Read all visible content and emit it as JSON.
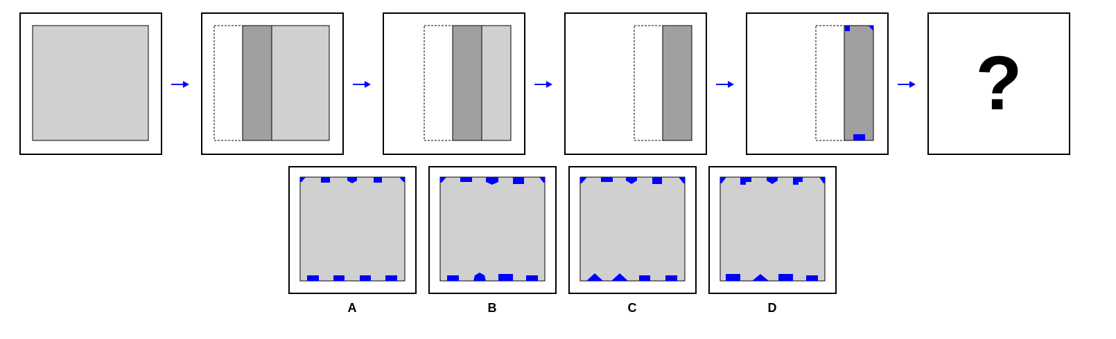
{
  "question_symbol": "?",
  "colors": {
    "light_gray": "#d0d0d0",
    "dark_gray": "#a0a0a0",
    "marker_blue": "#0000ff"
  },
  "sequence": [
    {
      "step": 1,
      "description_key": "full-sheet"
    },
    {
      "step": 2,
      "description_key": "folded-strip"
    },
    {
      "step": 3,
      "description_key": "second-fold"
    },
    {
      "step": 4,
      "description_key": "third-fold"
    },
    {
      "step": 5,
      "description_key": "punched"
    },
    {
      "step": 6,
      "description_key": "question"
    }
  ],
  "options": [
    {
      "label": "A"
    },
    {
      "label": "B"
    },
    {
      "label": "C"
    },
    {
      "label": "D"
    }
  ]
}
